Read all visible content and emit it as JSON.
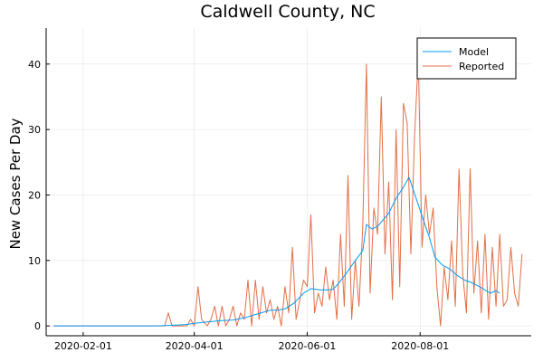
{
  "chart_data": {
    "type": "line",
    "title": "Caldwell County, NC",
    "xlabel": "",
    "ylabel": "New Cases Per Day",
    "x_range": [
      "2020-01-12",
      "2020-09-30"
    ],
    "ylim": [
      -1.5,
      45.5
    ],
    "x_ticks": [
      "2020-02-01",
      "2020-04-01",
      "2020-06-01",
      "2020-08-01"
    ],
    "y_ticks": [
      0,
      10,
      20,
      30,
      40
    ],
    "grid": true,
    "legend_position": "top-right",
    "series": [
      {
        "name": "Model",
        "color": "#009AFA",
        "points": [
          [
            "2020-01-16",
            0
          ],
          [
            "2020-03-12",
            0
          ],
          [
            "2020-03-20",
            0.1
          ],
          [
            "2020-03-27",
            0.2
          ],
          [
            "2020-04-01",
            0.4
          ],
          [
            "2020-04-08",
            0.6
          ],
          [
            "2020-04-15",
            0.8
          ],
          [
            "2020-04-22",
            0.9
          ],
          [
            "2020-04-29",
            1.3
          ],
          [
            "2020-05-06",
            1.9
          ],
          [
            "2020-05-12",
            2.4
          ],
          [
            "2020-05-16",
            2.4
          ],
          [
            "2020-05-20",
            2.6
          ],
          [
            "2020-05-25",
            3.5
          ],
          [
            "2020-05-30",
            5.0
          ],
          [
            "2020-06-03",
            5.7
          ],
          [
            "2020-06-08",
            5.5
          ],
          [
            "2020-06-12",
            5.5
          ],
          [
            "2020-06-15",
            5.6
          ],
          [
            "2020-06-18",
            6.5
          ],
          [
            "2020-06-22",
            8.0
          ],
          [
            "2020-06-27",
            10.0
          ],
          [
            "2020-07-01",
            11.5
          ],
          [
            "2020-07-03",
            15.5
          ],
          [
            "2020-07-06",
            14.8
          ],
          [
            "2020-07-09",
            15.2
          ],
          [
            "2020-07-12",
            16.2
          ],
          [
            "2020-07-15",
            17.2
          ],
          [
            "2020-07-19",
            19.5
          ],
          [
            "2020-07-23",
            21.2
          ],
          [
            "2020-07-26",
            22.7
          ],
          [
            "2020-07-28",
            21.0
          ],
          [
            "2020-07-31",
            18.5
          ],
          [
            "2020-08-03",
            16.0
          ],
          [
            "2020-08-06",
            13.5
          ],
          [
            "2020-08-09",
            10.5
          ],
          [
            "2020-08-13",
            9.3
          ],
          [
            "2020-08-17",
            8.7
          ],
          [
            "2020-08-21",
            7.7
          ],
          [
            "2020-08-25",
            7.0
          ],
          [
            "2020-08-29",
            6.6
          ],
          [
            "2020-09-02",
            6.0
          ],
          [
            "2020-09-05",
            5.5
          ],
          [
            "2020-09-08",
            5.0
          ],
          [
            "2020-09-11",
            5.4
          ],
          [
            "2020-09-13",
            5.0
          ]
        ]
      },
      {
        "name": "Reported",
        "color": "#E26F46",
        "points": [
          [
            "2020-01-16",
            0
          ],
          [
            "2020-03-12",
            0
          ],
          [
            "2020-03-16",
            0
          ],
          [
            "2020-03-18",
            2
          ],
          [
            "2020-03-20",
            0
          ],
          [
            "2020-03-28",
            0
          ],
          [
            "2020-03-30",
            1
          ],
          [
            "2020-04-01",
            0
          ],
          [
            "2020-04-03",
            6
          ],
          [
            "2020-04-05",
            1
          ],
          [
            "2020-04-08",
            0
          ],
          [
            "2020-04-10",
            1
          ],
          [
            "2020-04-12",
            3
          ],
          [
            "2020-04-14",
            0
          ],
          [
            "2020-04-16",
            3
          ],
          [
            "2020-04-18",
            0
          ],
          [
            "2020-04-20",
            1
          ],
          [
            "2020-04-22",
            3
          ],
          [
            "2020-04-24",
            0
          ],
          [
            "2020-04-26",
            2
          ],
          [
            "2020-04-28",
            1
          ],
          [
            "2020-04-30",
            7
          ],
          [
            "2020-05-02",
            0
          ],
          [
            "2020-05-04",
            7
          ],
          [
            "2020-05-06",
            1
          ],
          [
            "2020-05-08",
            6
          ],
          [
            "2020-05-10",
            2
          ],
          [
            "2020-05-12",
            4
          ],
          [
            "2020-05-14",
            1
          ],
          [
            "2020-05-16",
            3
          ],
          [
            "2020-05-18",
            0
          ],
          [
            "2020-05-20",
            6
          ],
          [
            "2020-05-22",
            2
          ],
          [
            "2020-05-24",
            12
          ],
          [
            "2020-05-26",
            1
          ],
          [
            "2020-05-28",
            4
          ],
          [
            "2020-05-30",
            7
          ],
          [
            "2020-06-01",
            6
          ],
          [
            "2020-06-03",
            17
          ],
          [
            "2020-06-05",
            2
          ],
          [
            "2020-06-07",
            5
          ],
          [
            "2020-06-09",
            3
          ],
          [
            "2020-06-11",
            9
          ],
          [
            "2020-06-13",
            4
          ],
          [
            "2020-06-15",
            7
          ],
          [
            "2020-06-17",
            1
          ],
          [
            "2020-06-19",
            14
          ],
          [
            "2020-06-21",
            3
          ],
          [
            "2020-06-23",
            23
          ],
          [
            "2020-06-25",
            1
          ],
          [
            "2020-06-27",
            10
          ],
          [
            "2020-06-29",
            3
          ],
          [
            "2020-07-01",
            15
          ],
          [
            "2020-07-03",
            40
          ],
          [
            "2020-07-05",
            5
          ],
          [
            "2020-07-07",
            18
          ],
          [
            "2020-07-09",
            14
          ],
          [
            "2020-07-11",
            35
          ],
          [
            "2020-07-13",
            11
          ],
          [
            "2020-07-15",
            22
          ],
          [
            "2020-07-17",
            4
          ],
          [
            "2020-07-19",
            30
          ],
          [
            "2020-07-21",
            6
          ],
          [
            "2020-07-23",
            34
          ],
          [
            "2020-07-25",
            31
          ],
          [
            "2020-07-27",
            11
          ],
          [
            "2020-07-29",
            29
          ],
          [
            "2020-07-31",
            41
          ],
          [
            "2020-08-02",
            12
          ],
          [
            "2020-08-04",
            20
          ],
          [
            "2020-08-06",
            14
          ],
          [
            "2020-08-08",
            18
          ],
          [
            "2020-08-10",
            6
          ],
          [
            "2020-08-12",
            0
          ],
          [
            "2020-08-14",
            9
          ],
          [
            "2020-08-16",
            4
          ],
          [
            "2020-08-18",
            13
          ],
          [
            "2020-08-20",
            3
          ],
          [
            "2020-08-22",
            24
          ],
          [
            "2020-08-24",
            8
          ],
          [
            "2020-08-26",
            2
          ],
          [
            "2020-08-28",
            24
          ],
          [
            "2020-08-30",
            5
          ],
          [
            "2020-09-01",
            13
          ],
          [
            "2020-09-03",
            2
          ],
          [
            "2020-09-05",
            14
          ],
          [
            "2020-09-07",
            1
          ],
          [
            "2020-09-09",
            12
          ],
          [
            "2020-09-11",
            3
          ],
          [
            "2020-09-13",
            14
          ],
          [
            "2020-09-15",
            3
          ],
          [
            "2020-09-17",
            4
          ],
          [
            "2020-09-19",
            12
          ],
          [
            "2020-09-21",
            5
          ],
          [
            "2020-09-23",
            3
          ],
          [
            "2020-09-25",
            11
          ]
        ]
      }
    ]
  }
}
